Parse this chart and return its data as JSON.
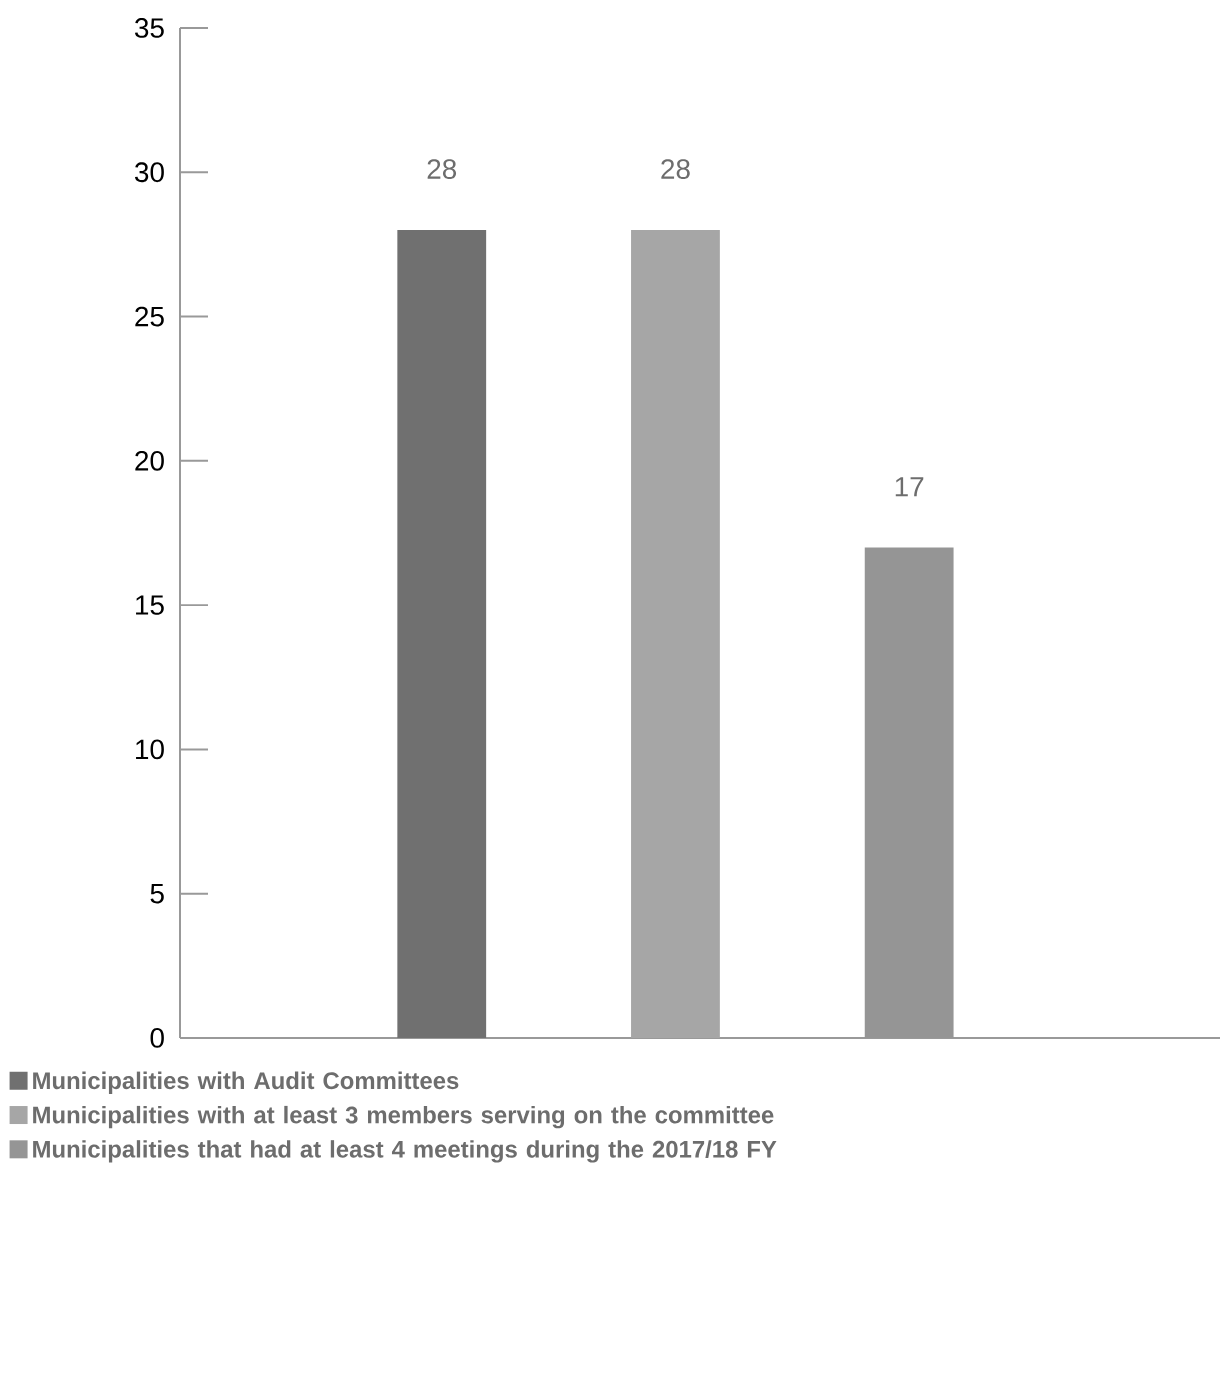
{
  "chart_data": {
    "type": "bar",
    "categories": [
      null,
      null,
      null
    ],
    "series": [
      {
        "name": "Municipalities with Audit Committees",
        "color": "#707070",
        "values": [
          28,
          null,
          null
        ]
      },
      {
        "name": "Municipalities with at least 3 members serving on the committee",
        "color": "#a6a6a6",
        "values": [
          null,
          28,
          null
        ]
      },
      {
        "name": "Municipalities that had at least 4 meetings during the 2017/18 FY",
        "color": "#959595",
        "values": [
          null,
          null,
          17
        ]
      }
    ],
    "ylim": [
      0,
      35
    ],
    "yticks": [
      0,
      5,
      10,
      15,
      20,
      25,
      30,
      35
    ],
    "data_labels": true,
    "legend": "bottom",
    "tick_labels": "y",
    "grid": false
  }
}
